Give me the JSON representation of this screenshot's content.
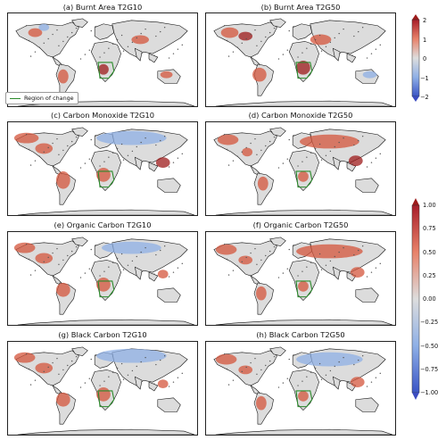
{
  "panels": [
    {
      "title": "(a) Burnt Area T2G10"
    },
    {
      "title": "(b) Burnt Area T2G50"
    },
    {
      "title": "(c) Carbon Monoxide T2G10"
    },
    {
      "title": "(d) Carbon Monoxide T2G50"
    },
    {
      "title": "(e) Organic Carbon T2G10"
    },
    {
      "title": "(f) Organic Carbon T2G50"
    },
    {
      "title": "(g) Black Carbon T2G10"
    },
    {
      "title": "(h) Black Carbon T2G50"
    }
  ],
  "legend": {
    "label": "Region of change",
    "line_color": "#2a8a2a"
  },
  "colorbar_top": {
    "ticks": [
      "2",
      "1",
      "0",
      "−1",
      "−2"
    ],
    "range": [
      -2,
      2
    ],
    "extend": "both"
  },
  "colorbar_bottom": {
    "ticks": [
      "1.00",
      "0.75",
      "0.50",
      "0.25",
      "0.00",
      "−0.25",
      "−0.50",
      "−0.75",
      "−1.00"
    ],
    "range": [
      -1,
      1
    ],
    "extend": "both"
  },
  "colors": {
    "land": "#dcdcdc",
    "positive": "#d4553c",
    "strong_positive": "#9e1b1b",
    "negative": "#8fb0e6",
    "coast": "#111111",
    "region_box": "#2a8a2a",
    "stipple": "#555555"
  }
}
